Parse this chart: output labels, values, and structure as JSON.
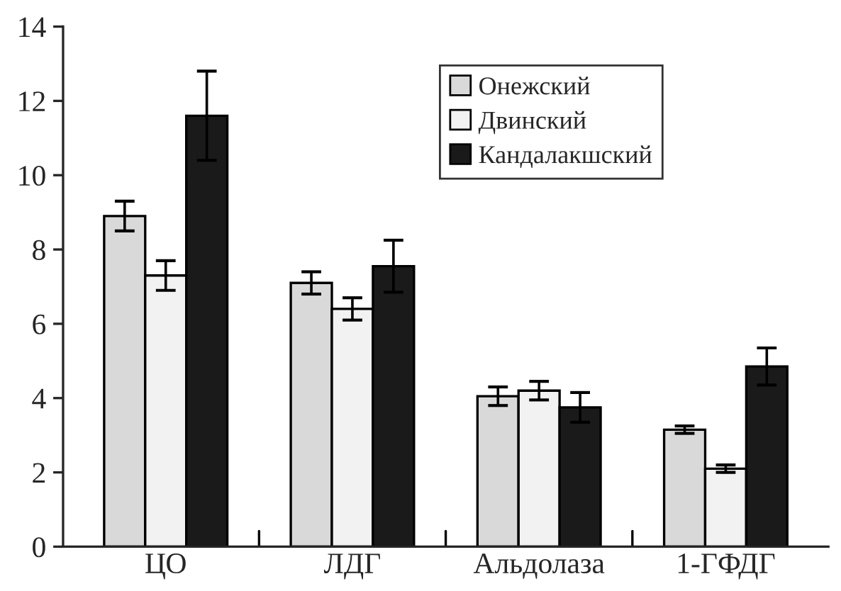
{
  "chart_data": {
    "type": "bar",
    "categories": [
      "ЦО",
      "ЛДГ",
      "Альдолаза",
      "1-ГФДГ"
    ],
    "series": [
      {
        "name": "Онежский",
        "color": "#d9d9d9",
        "values": [
          8.9,
          7.1,
          4.05,
          3.15
        ],
        "errors": [
          0.4,
          0.3,
          0.25,
          0.1
        ]
      },
      {
        "name": "Двинский",
        "color": "#f2f2f2",
        "values": [
          7.3,
          6.4,
          4.2,
          2.1
        ],
        "errors": [
          0.4,
          0.3,
          0.25,
          0.1
        ]
      },
      {
        "name": "Кандалакшский",
        "color": "#1a1a1a",
        "values": [
          11.6,
          7.55,
          3.75,
          4.85
        ],
        "errors": [
          1.2,
          0.7,
          0.4,
          0.5
        ]
      }
    ],
    "ylim": [
      0,
      14
    ],
    "yticks": [
      0,
      2,
      4,
      6,
      8,
      10,
      12,
      14
    ],
    "grid": false,
    "legend": "top right"
  }
}
